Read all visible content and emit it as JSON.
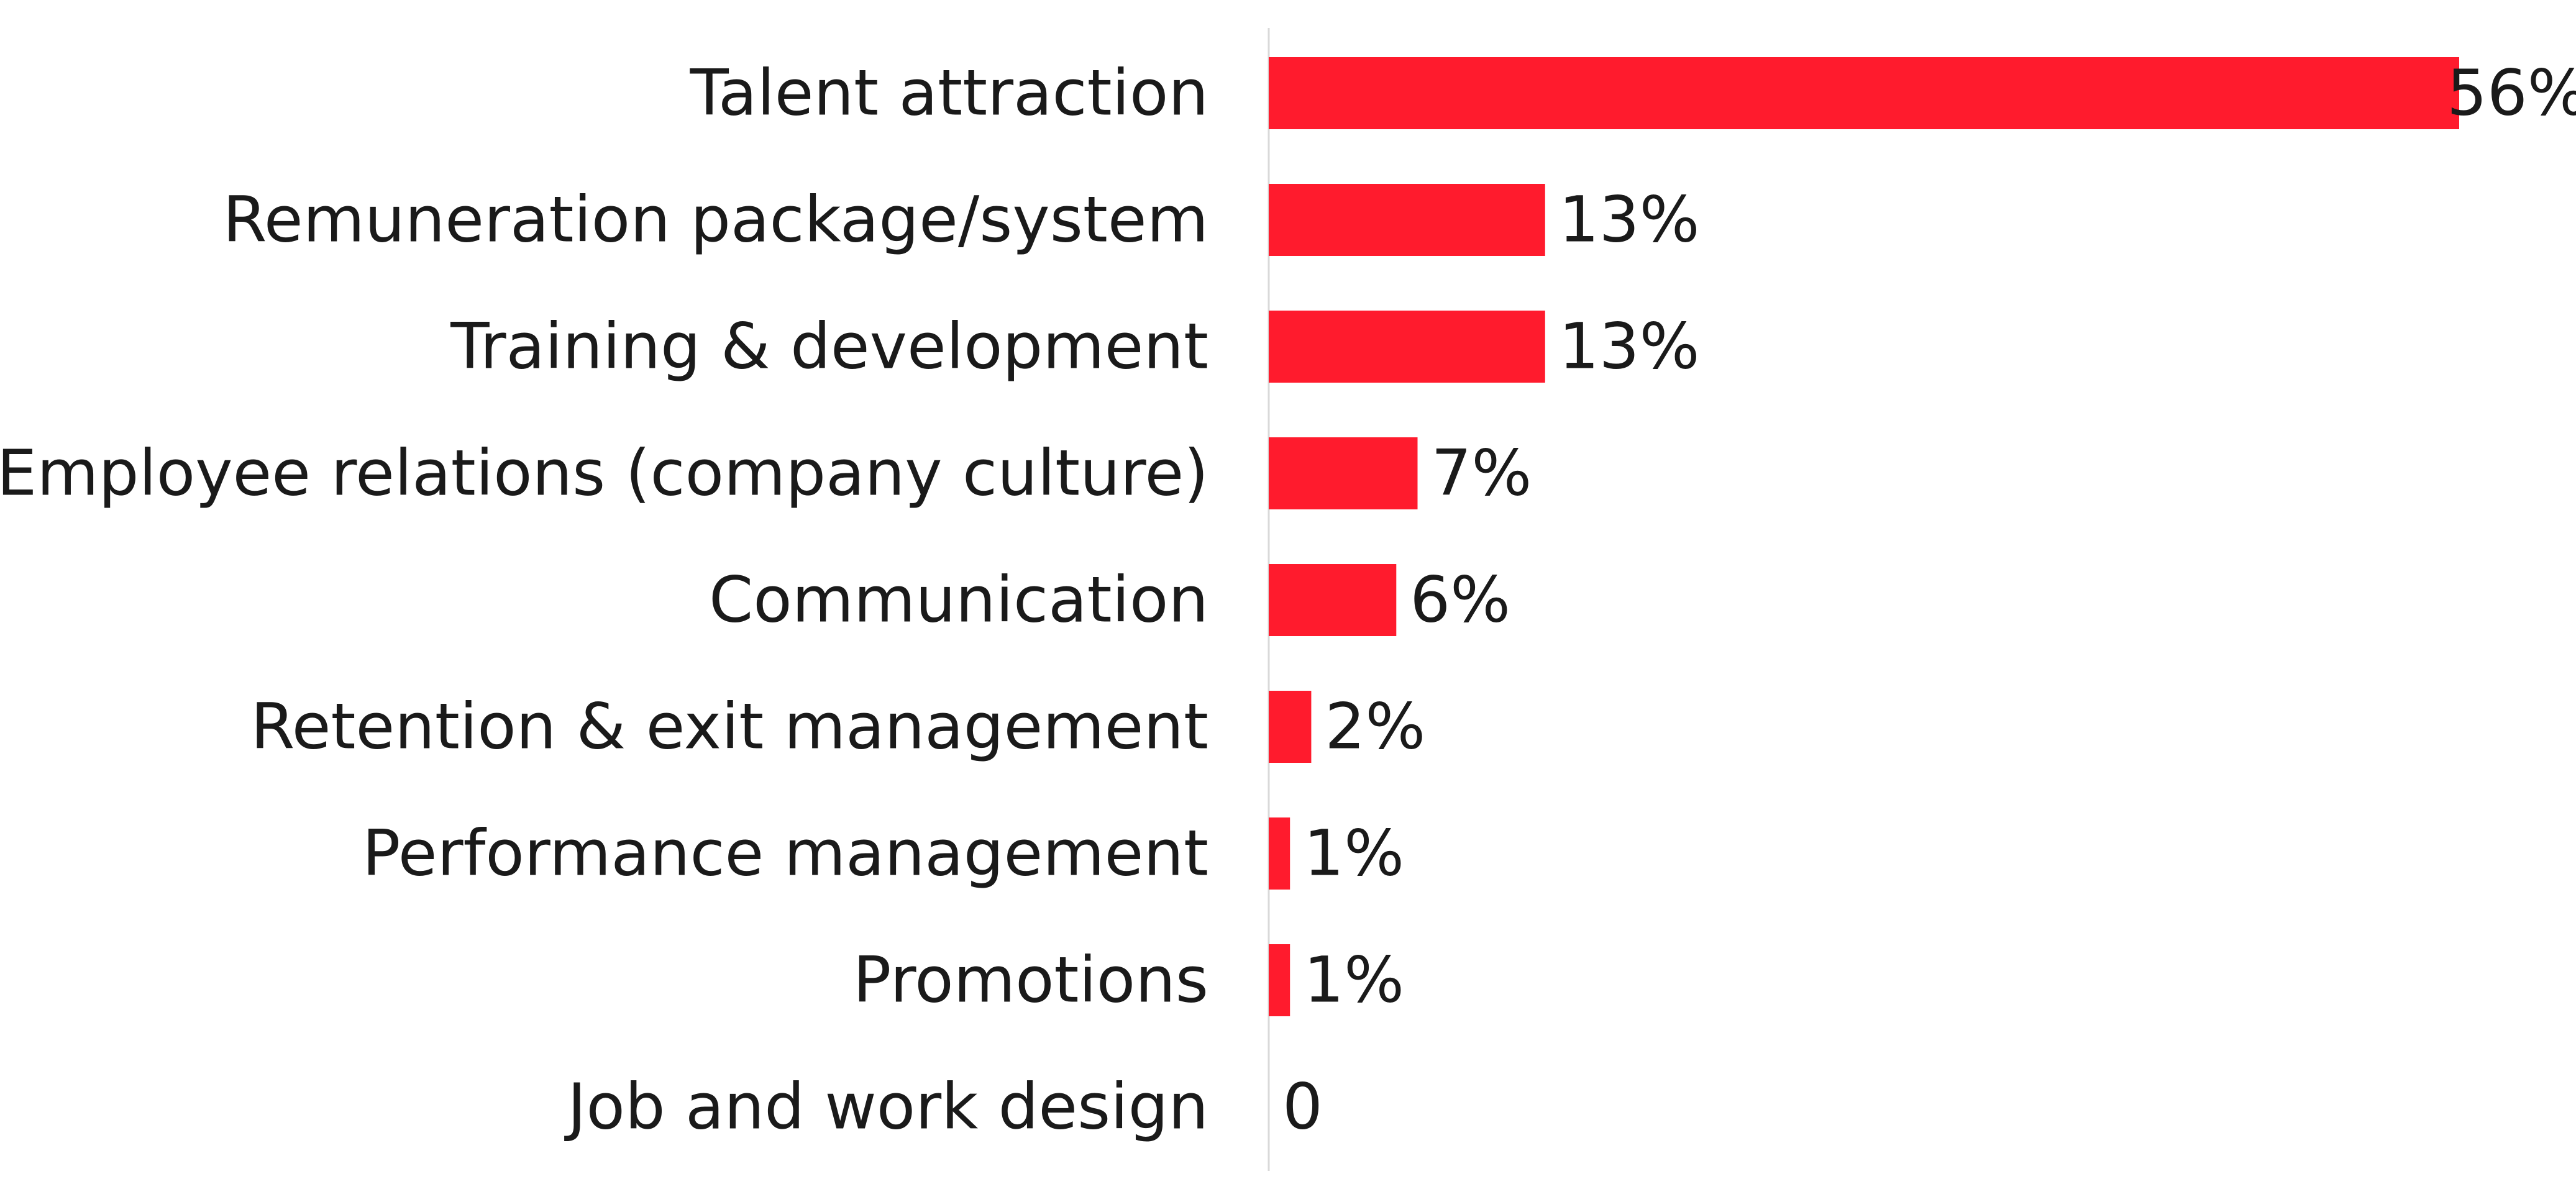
{
  "chart_data": {
    "type": "bar",
    "orientation": "horizontal",
    "categories": [
      "Talent attraction",
      "Remuneration package/system",
      "Training & development",
      "Employee relations (company culture)",
      "Communication",
      "Retention & exit management",
      "Performance management",
      "Promotions",
      "Job and work design"
    ],
    "values": [
      56,
      13,
      13,
      7,
      6,
      2,
      1,
      1,
      0
    ],
    "value_labels": [
      "56%",
      "13%",
      "13%",
      "7%",
      "6%",
      "2%",
      "1%",
      "1%",
      "0"
    ],
    "xlim": [
      0,
      56
    ],
    "grid": false,
    "legend": "none",
    "bar_color": "#FF1B2D",
    "axis_color": "#d9d9d9",
    "text_color": "#1a1a1a"
  }
}
